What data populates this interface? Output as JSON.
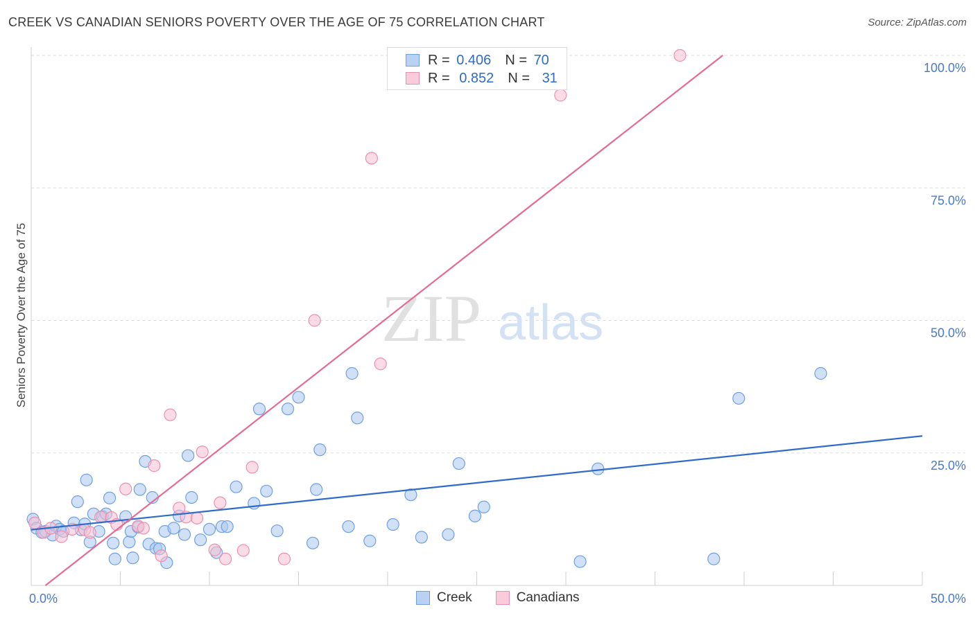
{
  "title": "CREEK VS CANADIAN SENIORS POVERTY OVER THE AGE OF 75 CORRELATION CHART",
  "source": "Source: ZipAtlas.com",
  "watermark": {
    "zip": "ZIP",
    "atlas": "atlas"
  },
  "colors": {
    "creek_fill": "#a9c8f0",
    "creek_stroke": "#6f9fe0",
    "creek_line": "#2f6bc9",
    "canadians_fill": "#f7bfd1",
    "canadians_stroke": "#ec8fae",
    "canadians_line": "#e56a93",
    "tick_text": "#4a78c9"
  },
  "legend": {
    "creek": {
      "r_label": "R =",
      "r_value": "0.406",
      "n_label": "N =",
      "n_value": "70"
    },
    "canadians": {
      "r_label": "R =",
      "r_value": "0.852",
      "n_label": "N =",
      "n_value": "31"
    }
  },
  "bottom_legend": {
    "creek": "Creek",
    "canadians": "Canadians"
  },
  "chart_data": {
    "type": "scatter",
    "xlabel": "",
    "ylabel": "Seniors Poverty Over the Age of 75",
    "xlim": [
      0,
      50
    ],
    "ylim": [
      0,
      100
    ],
    "x_tick_labels": [
      "0.0%",
      "50.0%"
    ],
    "y_tick_labels": [
      "25.0%",
      "50.0%",
      "75.0%",
      "100.0%"
    ],
    "y_ticks": [
      25,
      50,
      75,
      100
    ],
    "grid": "horizontal dashed",
    "legend_position": "top-center",
    "series": [
      {
        "name": "Creek",
        "trend": {
          "x": [
            0,
            50
          ],
          "y": [
            10.5,
            28.2
          ]
        },
        "points": [
          [
            0.1,
            12.5
          ],
          [
            0.3,
            10.8
          ],
          [
            0.6,
            10.0
          ],
          [
            0.8,
            10.2
          ],
          [
            1.2,
            9.5
          ],
          [
            1.4,
            11.2
          ],
          [
            1.6,
            10.6
          ],
          [
            1.8,
            10.2
          ],
          [
            2.4,
            11.8
          ],
          [
            2.8,
            10.5
          ],
          [
            3.0,
            11.6
          ],
          [
            2.6,
            15.8
          ],
          [
            3.1,
            19.9
          ],
          [
            3.3,
            8.2
          ],
          [
            3.5,
            13.5
          ],
          [
            3.8,
            10.2
          ],
          [
            4.0,
            13.0
          ],
          [
            4.2,
            13.5
          ],
          [
            4.4,
            16.5
          ],
          [
            4.6,
            8.0
          ],
          [
            4.7,
            5.0
          ],
          [
            5.3,
            13.0
          ],
          [
            5.5,
            8.2
          ],
          [
            5.6,
            10.2
          ],
          [
            5.7,
            5.2
          ],
          [
            6.0,
            11.0
          ],
          [
            6.1,
            18.1
          ],
          [
            6.4,
            23.4
          ],
          [
            6.6,
            7.8
          ],
          [
            6.8,
            16.6
          ],
          [
            7.0,
            7.0
          ],
          [
            7.2,
            6.9
          ],
          [
            7.5,
            10.2
          ],
          [
            7.6,
            4.3
          ],
          [
            8.0,
            10.8
          ],
          [
            8.3,
            13.1
          ],
          [
            8.6,
            9.6
          ],
          [
            8.8,
            24.5
          ],
          [
            9.0,
            16.6
          ],
          [
            9.5,
            8.6
          ],
          [
            10.0,
            10.6
          ],
          [
            10.4,
            6.2
          ],
          [
            10.7,
            11.1
          ],
          [
            11.0,
            11.1
          ],
          [
            11.5,
            18.6
          ],
          [
            12.5,
            15.5
          ],
          [
            12.8,
            33.3
          ],
          [
            13.2,
            17.8
          ],
          [
            13.8,
            10.3
          ],
          [
            14.4,
            33.3
          ],
          [
            15.0,
            35.5
          ],
          [
            15.8,
            8.0
          ],
          [
            16.0,
            18.1
          ],
          [
            16.2,
            25.6
          ],
          [
            17.8,
            11.1
          ],
          [
            18.0,
            40.0
          ],
          [
            18.3,
            31.6
          ],
          [
            19.0,
            8.4
          ],
          [
            20.3,
            11.5
          ],
          [
            21.3,
            17.1
          ],
          [
            21.9,
            9.1
          ],
          [
            23.4,
            9.6
          ],
          [
            24.0,
            23.0
          ],
          [
            24.9,
            13.1
          ],
          [
            25.4,
            14.8
          ],
          [
            30.8,
            4.5
          ],
          [
            31.8,
            22.0
          ],
          [
            38.3,
            5.0
          ],
          [
            39.7,
            35.3
          ],
          [
            44.3,
            40.0
          ]
        ]
      },
      {
        "name": "Canadians",
        "trend": {
          "x": [
            0.8,
            38.8
          ],
          "y": [
            0,
            100
          ]
        },
        "points": [
          [
            0.2,
            11.8
          ],
          [
            0.7,
            10.0
          ],
          [
            1.1,
            10.8
          ],
          [
            1.7,
            9.2
          ],
          [
            2.3,
            10.6
          ],
          [
            3.0,
            10.5
          ],
          [
            3.3,
            10.0
          ],
          [
            3.9,
            12.9
          ],
          [
            4.5,
            12.8
          ],
          [
            4.8,
            11.5
          ],
          [
            5.3,
            18.2
          ],
          [
            6.0,
            11.2
          ],
          [
            6.3,
            10.8
          ],
          [
            6.9,
            22.6
          ],
          [
            7.3,
            5.6
          ],
          [
            7.8,
            32.2
          ],
          [
            8.3,
            14.6
          ],
          [
            8.7,
            12.9
          ],
          [
            9.3,
            12.7
          ],
          [
            9.6,
            25.2
          ],
          [
            10.3,
            6.7
          ],
          [
            10.6,
            15.6
          ],
          [
            10.9,
            5.0
          ],
          [
            11.9,
            6.6
          ],
          [
            12.4,
            22.3
          ],
          [
            14.2,
            5.0
          ],
          [
            15.9,
            50.0
          ],
          [
            19.1,
            80.6
          ],
          [
            19.6,
            41.8
          ],
          [
            29.7,
            92.5
          ],
          [
            36.4,
            100.0
          ]
        ]
      }
    ]
  }
}
